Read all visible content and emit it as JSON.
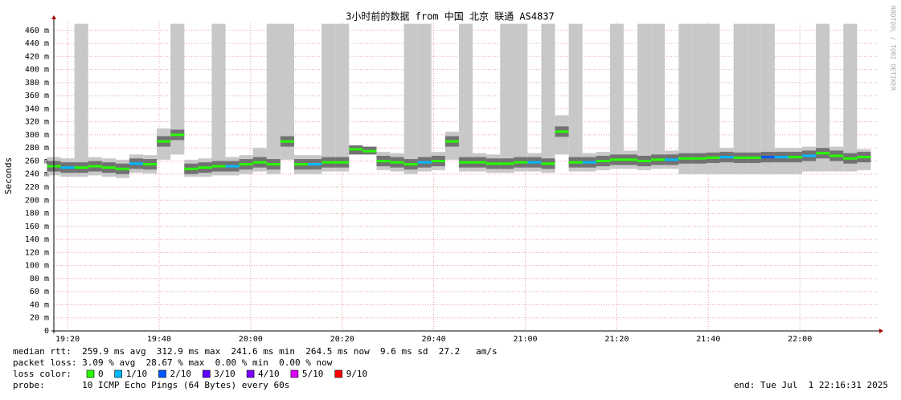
{
  "chart_data": {
    "type": "smoke",
    "title": "3小时前的数据 from 中国 北京 联通 AS4837",
    "y_label": "Seconds",
    "watermark": "RRDTOOL / TOBI OETIKER",
    "xlim": [
      "19:17",
      "22:17"
    ],
    "xticks": [
      "19:20",
      "19:40",
      "20:00",
      "20:20",
      "20:40",
      "21:00",
      "21:20",
      "21:40",
      "22:00"
    ],
    "ylim": [
      0,
      472
    ],
    "yticks": [
      0,
      {
        "value": 20,
        "label": "20 m"
      },
      {
        "value": 40,
        "label": "40 m"
      },
      {
        "value": 60,
        "label": "60 m"
      },
      {
        "value": 80,
        "label": "80 m"
      },
      {
        "value": 100,
        "label": "100 m"
      },
      {
        "value": 120,
        "label": "120 m"
      },
      {
        "value": 140,
        "label": "140 m"
      },
      {
        "value": 160,
        "label": "160 m"
      },
      {
        "value": 180,
        "label": "180 m"
      },
      {
        "value": 200,
        "label": "200 m"
      },
      {
        "value": 220,
        "label": "220 m"
      },
      {
        "value": 240,
        "label": "240 m"
      },
      {
        "value": 260,
        "label": "260 m"
      },
      {
        "value": 280,
        "label": "280 m"
      },
      {
        "value": 300,
        "label": "300 m"
      },
      {
        "value": 320,
        "label": "320 m"
      },
      {
        "value": 340,
        "label": "340 m"
      },
      {
        "value": 360,
        "label": "360 m"
      },
      {
        "value": 380,
        "label": "380 m"
      },
      {
        "value": 400,
        "label": "400 m"
      },
      {
        "value": 420,
        "label": "420 m"
      },
      {
        "value": 440,
        "label": "440 m"
      },
      {
        "value": 460,
        "label": "460 m"
      }
    ],
    "grid": true,
    "smoke_color": "#c8c8c8",
    "core_color": "#555555",
    "x": [
      "19:17",
      "19:20",
      "19:23",
      "19:26",
      "19:29",
      "19:32",
      "19:35",
      "19:38",
      "19:41",
      "19:44",
      "19:47",
      "19:50",
      "19:53",
      "19:56",
      "19:59",
      "20:02",
      "20:05",
      "20:08",
      "20:11",
      "20:14",
      "20:17",
      "20:20",
      "20:23",
      "20:26",
      "20:29",
      "20:32",
      "20:35",
      "20:38",
      "20:41",
      "20:44",
      "20:47",
      "20:50",
      "20:53",
      "20:56",
      "20:59",
      "21:02",
      "21:05",
      "21:08",
      "21:11",
      "21:14",
      "21:17",
      "21:20",
      "21:23",
      "21:26",
      "21:29",
      "21:32",
      "21:35",
      "21:38",
      "21:41",
      "21:44",
      "21:47",
      "21:50",
      "21:53",
      "21:56",
      "21:59",
      "22:02",
      "22:05",
      "22:08",
      "22:11",
      "22:14"
    ],
    "median": [
      252,
      250,
      250,
      252,
      250,
      248,
      256,
      255,
      290,
      300,
      248,
      250,
      252,
      252,
      255,
      258,
      255,
      290,
      255,
      255,
      258,
      258,
      278,
      275,
      260,
      258,
      255,
      258,
      260,
      290,
      258,
      258,
      256,
      256,
      258,
      258,
      256,
      305,
      258,
      258,
      260,
      262,
      262,
      260,
      262,
      262,
      264,
      264,
      265,
      266,
      265,
      265,
      266,
      266,
      266,
      268,
      272,
      268,
      264,
      266
    ],
    "smoke_min": [
      238,
      236,
      236,
      238,
      236,
      234,
      242,
      241,
      262,
      270,
      236,
      236,
      238,
      238,
      240,
      244,
      240,
      262,
      240,
      240,
      244,
      244,
      270,
      270,
      246,
      244,
      240,
      244,
      246,
      262,
      244,
      244,
      242,
      242,
      244,
      244,
      242,
      270,
      244,
      244,
      246,
      248,
      248,
      246,
      248,
      248,
      240,
      240,
      240,
      240,
      240,
      240,
      240,
      240,
      240,
      244,
      244,
      244,
      244,
      246
    ],
    "smoke_max": [
      266,
      264,
      470,
      266,
      264,
      262,
      270,
      269,
      310,
      470,
      262,
      264,
      470,
      266,
      269,
      280,
      470,
      470,
      269,
      269,
      470,
      470,
      284,
      282,
      274,
      272,
      470,
      470,
      274,
      305,
      470,
      272,
      270,
      470,
      470,
      272,
      470,
      330,
      470,
      272,
      274,
      470,
      276,
      470,
      470,
      276,
      470,
      470,
      470,
      280,
      470,
      470,
      470,
      280,
      280,
      282,
      470,
      282,
      470,
      278
    ],
    "loss": [
      0,
      1,
      0,
      0,
      0,
      0,
      1,
      0,
      0,
      0,
      0,
      0,
      0,
      1,
      0,
      0,
      0,
      0,
      0,
      1,
      0,
      0,
      0,
      0,
      0,
      0,
      0,
      1,
      0,
      0,
      0,
      0,
      0,
      0,
      0,
      1,
      0,
      0,
      0,
      1,
      0,
      0,
      0,
      0,
      0,
      1,
      0,
      0,
      0,
      1,
      0,
      0,
      2,
      1,
      0,
      1,
      0,
      0,
      0,
      0
    ],
    "loss_label": "loss color:",
    "loss_legend": [
      {
        "name": "0",
        "color": "#26ff00"
      },
      {
        "name": "1/10",
        "color": "#00b8ff"
      },
      {
        "name": "2/10",
        "color": "#0059ff"
      },
      {
        "name": "3/10",
        "color": "#5e00ff"
      },
      {
        "name": "4/10",
        "color": "#7e00ff"
      },
      {
        "name": "5/10",
        "color": "#dd00ff"
      },
      {
        "name": "9/10",
        "color": "#ff0000"
      }
    ],
    "footer": [
      "median rtt:  259.9 ms avg  312.9 ms max  241.6 ms min  264.5 ms now  9.6 ms sd  27.2   am/s",
      "packet loss: 3.09 % avg  28.67 % max  0.00 % min  0.00 % now",
      "probe:       10 ICMP Echo Pings (64 Bytes) every 60s"
    ],
    "end": "end: Tue Jul  1 22:16:31 2025"
  }
}
